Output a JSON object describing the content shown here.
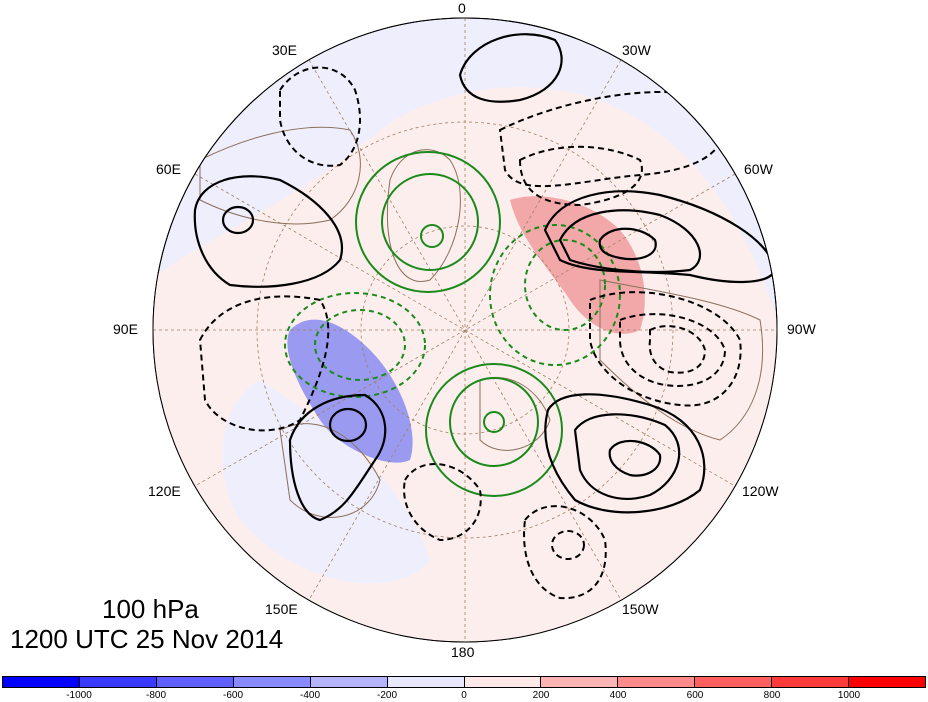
{
  "map": {
    "projection": "north-polar-stereographic",
    "longitude_labels": [
      "0",
      "30W",
      "60W",
      "90W",
      "120W",
      "150W",
      "180",
      "150E",
      "120E",
      "90E",
      "60E",
      "30E"
    ],
    "colors": {
      "positive_contour": "#000000",
      "negative_contour": "#000000",
      "green_contour": "#1a8a1a",
      "coastline": "#8b6f5a",
      "graticule": "#a08060"
    }
  },
  "caption": {
    "level": "100 hPa",
    "time": "1200 UTC 25 Nov 2014"
  },
  "colorbar": {
    "colors": [
      "#0000ff",
      "#3a3aff",
      "#5f5fff",
      "#8a8aff",
      "#b4b4ff",
      "#e8e8ff",
      "#ffe8e8",
      "#ffb4b4",
      "#ff8a8a",
      "#ff5f5f",
      "#ff3a3a",
      "#ff0000"
    ],
    "tick_labels": [
      "-1000",
      "-800",
      "-600",
      "-400",
      "-200",
      "0",
      "200",
      "400",
      "600",
      "800",
      "1000"
    ]
  }
}
